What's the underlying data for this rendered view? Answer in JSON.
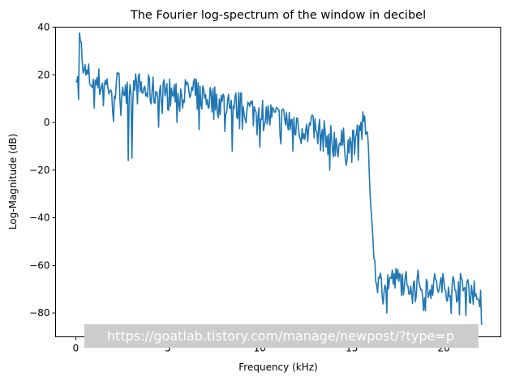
{
  "chart_data": {
    "type": "line",
    "title": "The Fourier log-spectrum of the window in decibel",
    "xlabel": "Frequency (kHz)",
    "ylabel": "Log-Magnitude (dB)",
    "xlim": [
      -1.1,
      23.1
    ],
    "ylim": [
      -90,
      40
    ],
    "xticks": [
      0,
      5,
      10,
      15,
      20
    ],
    "yticks": [
      -80,
      -60,
      -40,
      -20,
      0,
      20,
      40
    ],
    "grid": false,
    "line_color": "#1f77b4",
    "x_range": [
      0,
      22.05
    ],
    "step_khz": 0.05,
    "anchors": [
      [
        0,
        24
      ],
      [
        0.15,
        12
      ],
      [
        0.2,
        34
      ],
      [
        0.5,
        20
      ],
      [
        1,
        17
      ],
      [
        2,
        15
      ],
      [
        3,
        15
      ],
      [
        4,
        13
      ],
      [
        5,
        12
      ],
      [
        6,
        12
      ],
      [
        7,
        11
      ],
      [
        8,
        8
      ],
      [
        9,
        6
      ],
      [
        10,
        4
      ],
      [
        11,
        1
      ],
      [
        12,
        0
      ],
      [
        13,
        -4
      ],
      [
        14,
        -8
      ],
      [
        15,
        -10
      ],
      [
        15.4,
        -2
      ],
      [
        15.8,
        -3
      ],
      [
        15.9,
        -10
      ],
      [
        16.0,
        -30
      ],
      [
        16.2,
        -55
      ],
      [
        16.35,
        -68
      ],
      [
        17,
        -66
      ],
      [
        18,
        -67
      ],
      [
        19,
        -68
      ],
      [
        20,
        -69
      ],
      [
        21,
        -69
      ],
      [
        22,
        -72
      ]
    ],
    "noise_amp_high": 7,
    "noise_amp_low": 6,
    "dips": [
      [
        2.85,
        -16
      ],
      [
        3.05,
        -15
      ],
      [
        1.0,
        6
      ],
      [
        1.5,
        7
      ],
      [
        2.0,
        5
      ],
      [
        4.5,
        -2
      ],
      [
        5.5,
        0
      ],
      [
        6.7,
        -3
      ],
      [
        8.5,
        -12
      ],
      [
        11.8,
        -12
      ],
      [
        12.6,
        -8
      ],
      [
        13.8,
        -20
      ],
      [
        14.7,
        -18
      ],
      [
        16.9,
        -80
      ],
      [
        18.3,
        -76
      ],
      [
        18.9,
        -79
      ],
      [
        21.2,
        -81
      ],
      [
        22.05,
        -85
      ]
    ],
    "watermark": "https://goatlab.tistory.com/manage/newpost/?type=p"
  }
}
